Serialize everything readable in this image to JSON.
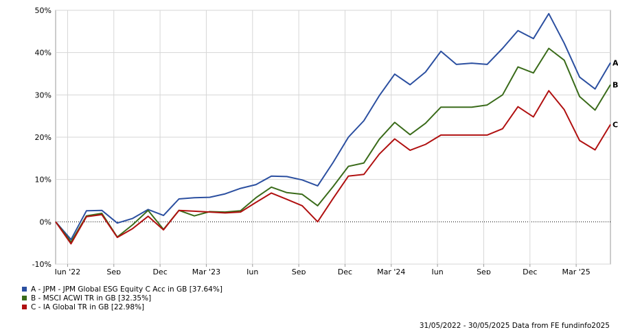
{
  "chart_data": {
    "type": "line",
    "x": [
      "May '22",
      "Jun '22",
      "Jul '22",
      "Aug '22",
      "Sep '22",
      "Oct '22",
      "Nov '22",
      "Dec '22",
      "Jan '23",
      "Feb '23",
      "Mar '23",
      "Apr '23",
      "May '23",
      "Jun '23",
      "Jul '23",
      "Aug '23",
      "Sep '23",
      "Oct '23",
      "Nov '23",
      "Dec '23",
      "Jan '24",
      "Feb '24",
      "Mar '24",
      "Apr '24",
      "May '24",
      "Jun '24",
      "Jul '24",
      "Aug '24",
      "Sep '24",
      "Oct '24",
      "Nov '24",
      "Dec '24",
      "Jan '25",
      "Feb '25",
      "Mar '25",
      "Apr '25",
      "May '25"
    ],
    "x_tick_labels": [
      "Jun '22",
      "Sep",
      "Dec",
      "Mar '23",
      "Jun",
      "Sep",
      "Dec",
      "Mar '24",
      "Jun",
      "Sep",
      "Dec",
      "Mar '25"
    ],
    "x_tick_index": [
      1,
      4,
      7,
      10,
      13,
      16,
      19,
      22,
      25,
      28,
      31,
      34
    ],
    "y_ticks": [
      -10,
      0,
      10,
      20,
      30,
      40,
      50
    ],
    "y_tick_labels": [
      "-10%",
      "0%",
      "10%",
      "20%",
      "30%",
      "40%",
      "50%"
    ],
    "ylim": [
      -10,
      50
    ],
    "grid": true,
    "zero_line": "dotted",
    "legend_placement": "bottom-left",
    "series": [
      {
        "name": "A - JPM - JPM Global ESG Equity C Acc in GB [37.64%]",
        "end_label": "A",
        "color": "#2b4fa0",
        "values": [
          0,
          -4.2,
          2.6,
          2.7,
          -0.3,
          0.8,
          2.9,
          1.5,
          5.4,
          5.7,
          5.8,
          6.6,
          7.9,
          8.8,
          10.8,
          10.7,
          9.9,
          8.5,
          14.0,
          20.0,
          23.9,
          29.8,
          34.9,
          32.4,
          35.4,
          40.3,
          37.2,
          37.5,
          37.2,
          41.0,
          45.2,
          43.3,
          49.2,
          42.2,
          34.2,
          31.4,
          37.6
        ]
      },
      {
        "name": "B - MSCI ACWI TR in GB [32.35%]",
        "end_label": "B",
        "color": "#3a6b1a",
        "values": [
          0,
          -4.8,
          1.4,
          2.0,
          -3.6,
          -0.7,
          2.7,
          -1.8,
          2.7,
          1.4,
          2.4,
          2.3,
          2.6,
          5.7,
          8.2,
          6.9,
          6.5,
          3.8,
          8.3,
          13.1,
          13.9,
          19.5,
          23.5,
          20.6,
          23.3,
          27.1,
          27.1,
          27.1,
          27.6,
          30.0,
          36.6,
          35.2,
          41.0,
          38.2,
          29.6,
          26.4,
          32.4
        ]
      },
      {
        "name": "C - IA Global TR in GB [22.98%]",
        "end_label": "C",
        "color": "#b01010",
        "values": [
          0,
          -5.2,
          1.2,
          1.7,
          -3.7,
          -1.6,
          1.3,
          -1.9,
          2.7,
          2.5,
          2.3,
          2.1,
          2.3,
          4.6,
          6.8,
          5.3,
          3.8,
          0.0,
          5.5,
          10.8,
          11.2,
          16.0,
          19.6,
          16.9,
          18.3,
          20.5,
          20.5,
          20.5,
          20.5,
          22.0,
          27.2,
          24.8,
          31.0,
          26.5,
          19.2,
          17.0,
          23.0
        ]
      }
    ]
  },
  "footer": {
    "text": "31/05/2022 - 30/05/2025 Data from FE fundinfo2025"
  }
}
